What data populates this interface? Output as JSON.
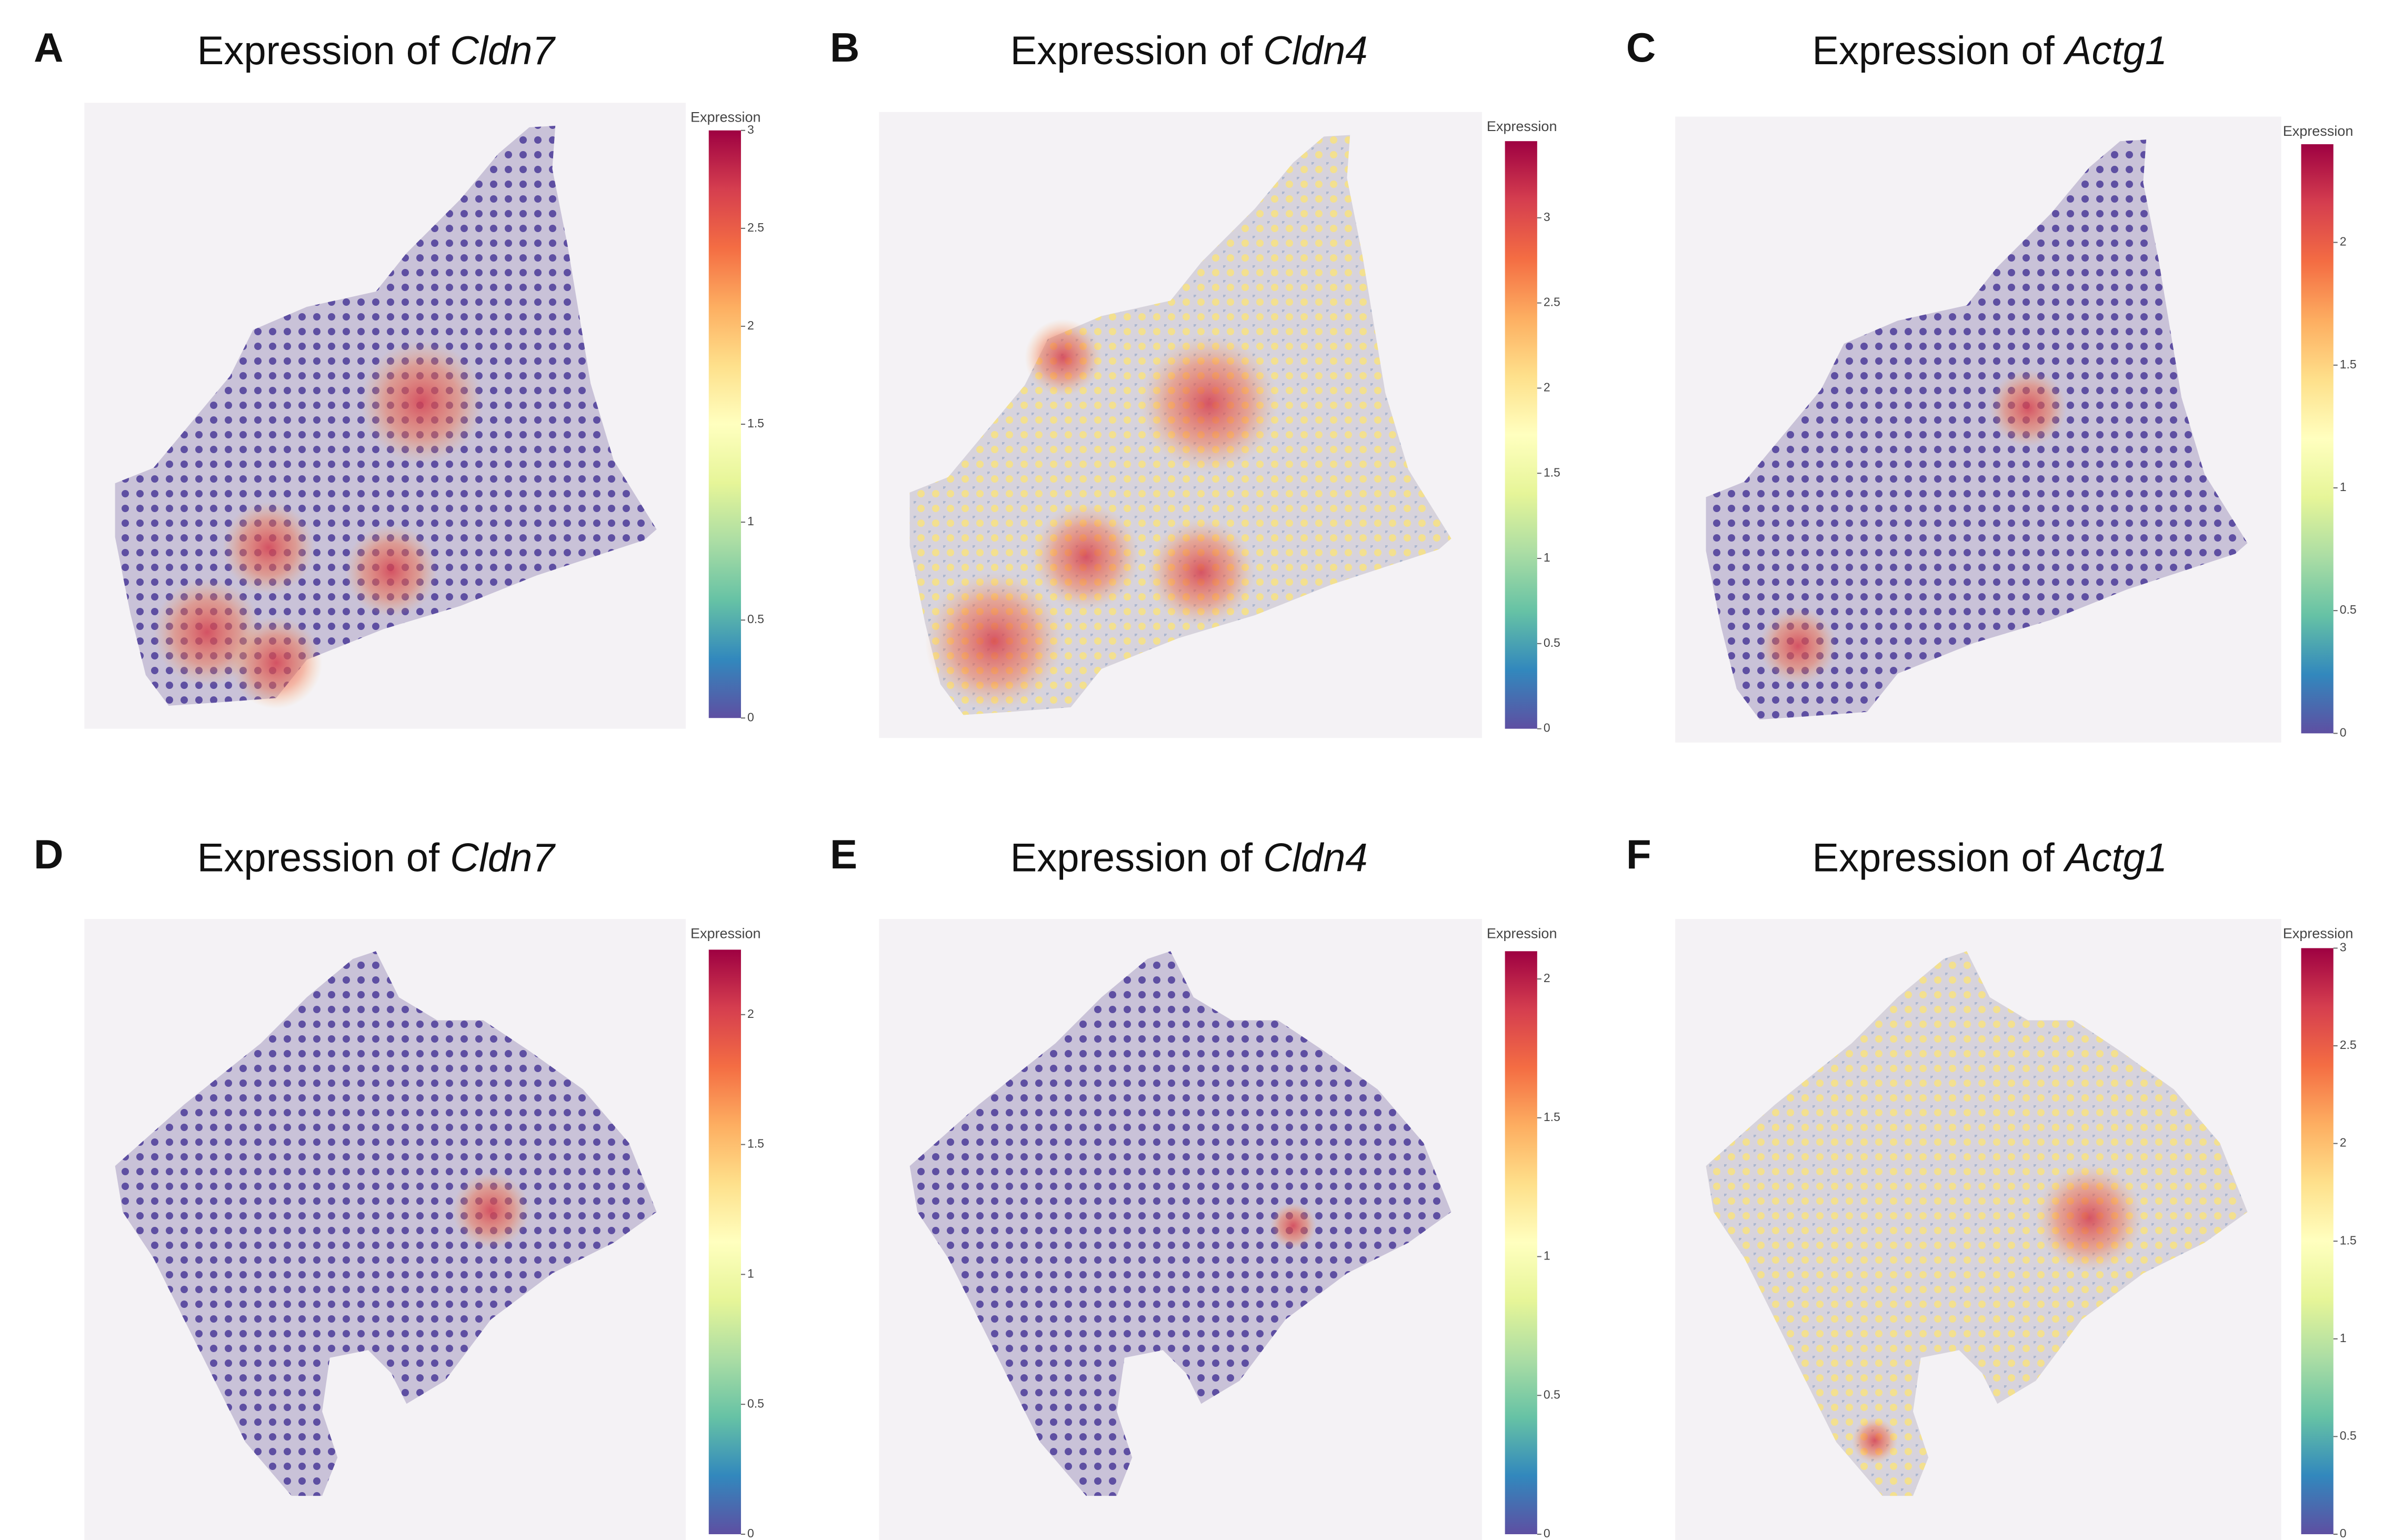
{
  "panels": [
    {
      "letter": "A",
      "title": "Expression of",
      "gene": "Cldn7",
      "colorbar": {
        "label": "Expression",
        "lim": [
          0,
          3
        ],
        "ticks": [
          0,
          0.5,
          1,
          1.5,
          2,
          2.5,
          3
        ]
      }
    },
    {
      "letter": "B",
      "title": "Expression of",
      "gene": "Cldn4",
      "colorbar": {
        "label": "Expression",
        "lim": [
          0,
          3.45
        ],
        "ticks": [
          0,
          0.5,
          1,
          1.5,
          2,
          2.5,
          3
        ]
      }
    },
    {
      "letter": "C",
      "title": "Expression of",
      "gene": "Actg1",
      "colorbar": {
        "label": "Expression",
        "lim": [
          0,
          2.4
        ],
        "ticks": [
          0,
          0.5,
          1,
          1.5,
          2
        ]
      }
    },
    {
      "letter": "D",
      "title": "Expression of",
      "gene": "Cldn7",
      "colorbar": {
        "label": "Expression",
        "lim": [
          0,
          2.25
        ],
        "ticks": [
          0,
          0.5,
          1,
          1.5,
          2
        ]
      }
    },
    {
      "letter": "E",
      "title": "Expression of",
      "gene": "Cldn4",
      "colorbar": {
        "label": "Expression",
        "lim": [
          0,
          2.1
        ],
        "ticks": [
          0,
          0.5,
          1,
          1.5,
          2
        ]
      }
    },
    {
      "letter": "F",
      "title": "Expression of",
      "gene": "Actg1",
      "colorbar": {
        "label": "Expression",
        "lim": [
          0,
          3
        ],
        "ticks": [
          0,
          0.5,
          1,
          1.5,
          2,
          2.5,
          3
        ]
      }
    }
  ]
}
